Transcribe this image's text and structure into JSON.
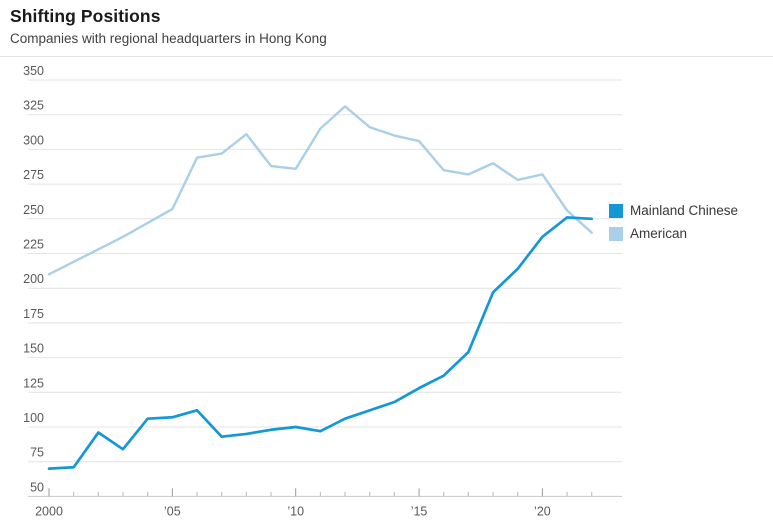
{
  "header": {
    "title": "Shifting Positions",
    "subtitle": "Companies with regional headquarters in Hong Kong"
  },
  "chart_data": {
    "type": "line",
    "x": [
      2000,
      2001,
      2002,
      2003,
      2004,
      2005,
      2006,
      2007,
      2008,
      2009,
      2010,
      2011,
      2012,
      2013,
      2014,
      2015,
      2016,
      2017,
      2018,
      2019,
      2020,
      2021,
      2022
    ],
    "series": [
      {
        "name": "Mainland Chinese",
        "color": "#1498d5",
        "values": [
          70,
          71,
          96,
          84,
          106,
          107,
          112,
          93,
          95,
          98,
          100,
          97,
          106,
          112,
          118,
          128,
          137,
          154,
          197,
          214,
          237,
          251,
          250
        ]
      },
      {
        "name": "American",
        "color": "#a9cfe9",
        "values": [
          210,
          219,
          228,
          237,
          247,
          257,
          294,
          297,
          311,
          288,
          286,
          315,
          331,
          316,
          310,
          306,
          285,
          282,
          290,
          278,
          282,
          256,
          240
        ]
      }
    ],
    "title": "Shifting Positions",
    "subtitle": "Companies with regional headquarters in Hong Kong",
    "xlabel": "",
    "ylabel": "",
    "ylim": [
      50,
      350
    ],
    "ytick_step": 25,
    "yticks": [
      50,
      75,
      100,
      125,
      150,
      175,
      200,
      225,
      250,
      275,
      300,
      325,
      350
    ],
    "xtick_labels": {
      "2000": "2000",
      "2005": "’05",
      "2010": "’10",
      "2015": "’15",
      "2020": "’20"
    },
    "grid": "horizontal",
    "legend_position": "right",
    "axis_color": "#c9c9c9",
    "gridline_color": "#e4e4e4",
    "tick_color": "#9a9a9a",
    "label_color": "#595959"
  }
}
